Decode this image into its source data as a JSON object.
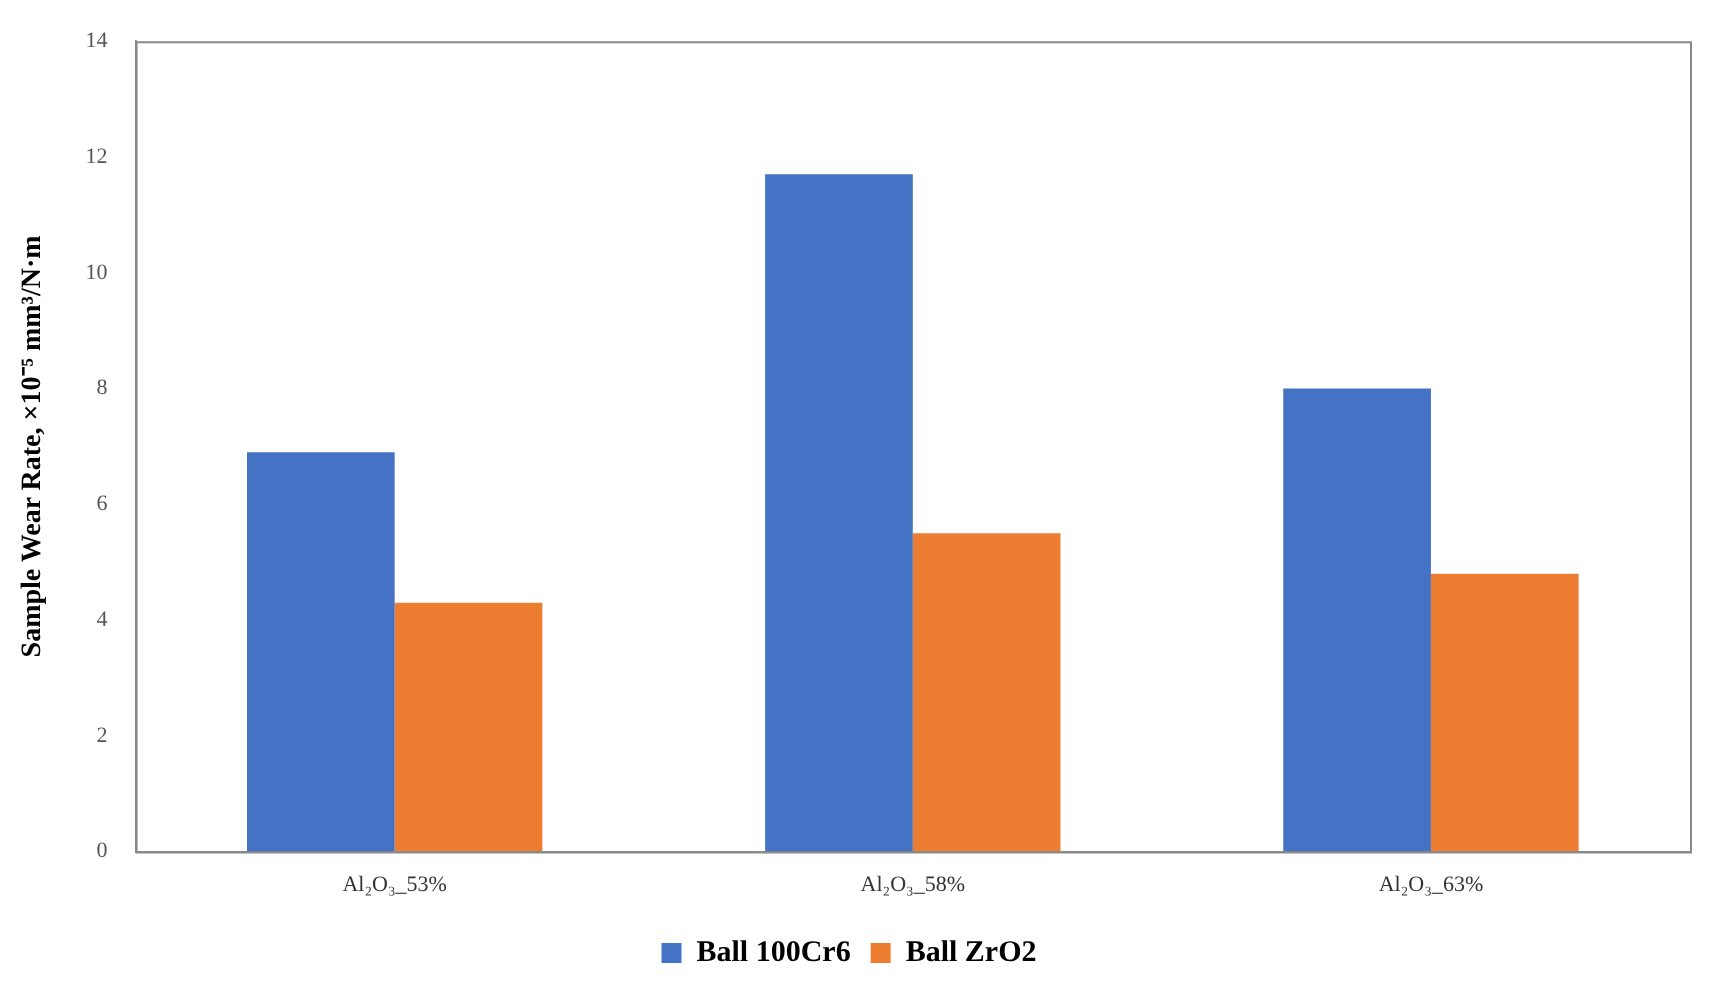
{
  "chart_data": {
    "type": "bar",
    "ylabel": "Sample Wear Rate, ×10⁻⁵ mm³/N·m",
    "categories": [
      "Al₂O₃_53%",
      "Al₂O₃_58%",
      "Al₂O₃_63%"
    ],
    "series": [
      {
        "name": "Ball 100Cr6",
        "color": "#4472c4",
        "values": [
          6.9,
          11.7,
          8.0
        ]
      },
      {
        "name": "Ball ZrO2",
        "color": "#ed7d31",
        "values": [
          4.3,
          5.5,
          4.8
        ]
      }
    ],
    "ylim": [
      0,
      14
    ],
    "yticks": [
      0,
      2,
      4,
      6,
      8,
      10,
      12,
      14
    ],
    "grid": false,
    "legend": "bottom"
  }
}
